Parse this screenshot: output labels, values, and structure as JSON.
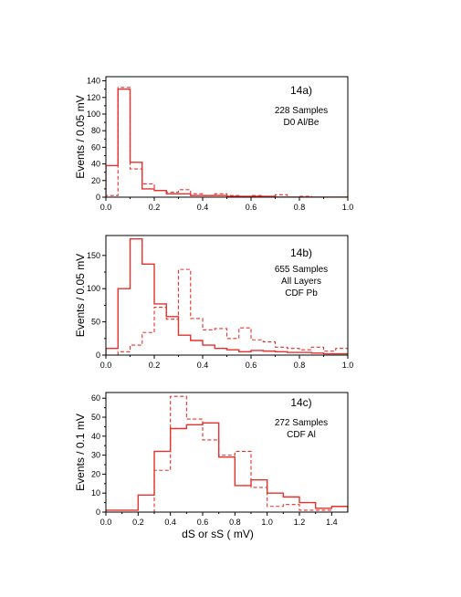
{
  "colors": {
    "solid": "#e8302c",
    "dashed": "#e8302c",
    "axis": "#000000"
  },
  "chart_data": [
    {
      "type": "histogram",
      "label": "14a)",
      "annotation": [
        "228 Samples",
        "D0 Al/Be"
      ],
      "ylabel": "Events / 0.05 mV",
      "xlabel": "",
      "xlim": [
        0,
        1.0
      ],
      "ylim": [
        0,
        145
      ],
      "xticks": [
        0,
        0.2,
        0.4,
        0.6,
        0.8,
        1.0
      ],
      "xtick_labels": [
        "0.0",
        "0.2",
        "0.4",
        "0.6",
        "0.8",
        "1.0"
      ],
      "yticks": [
        0,
        20,
        40,
        60,
        80,
        100,
        120,
        140
      ],
      "ytick_labels": [
        "0",
        "20",
        "40",
        "60",
        "80",
        "100",
        "120",
        "140"
      ],
      "bin_edges": [
        0,
        0.05,
        0.1,
        0.15,
        0.2,
        0.25,
        0.3,
        0.35,
        0.4,
        0.45,
        0.5,
        0.55,
        0.6,
        0.65,
        0.7,
        0.75,
        0.8,
        0.85,
        0.9,
        0.95,
        1.0
      ],
      "series": [
        {
          "style": "solid",
          "values": [
            38,
            130,
            42,
            10,
            8,
            4,
            4,
            2,
            2,
            2,
            1,
            1,
            1,
            1,
            0,
            0,
            0,
            0,
            0,
            0
          ]
        },
        {
          "style": "dashed",
          "values": [
            2,
            132,
            34,
            16,
            8,
            6,
            9,
            4,
            2,
            4,
            2,
            1,
            2,
            1,
            3,
            0,
            1,
            0,
            0,
            0
          ]
        }
      ]
    },
    {
      "type": "histogram",
      "label": "14b)",
      "annotation": [
        "655 Samples",
        "All Layers",
        "CDF Pb"
      ],
      "ylabel": "Events / 0.05 mV",
      "xlabel": "",
      "xlim": [
        0,
        1.0
      ],
      "ylim": [
        0,
        180
      ],
      "xticks": [
        0,
        0.2,
        0.4,
        0.6,
        0.8,
        1.0
      ],
      "xtick_labels": [
        "0.0",
        "0.2",
        "0.4",
        "0.6",
        "0.8",
        "1.0"
      ],
      "yticks": [
        0,
        50,
        100,
        150
      ],
      "ytick_labels": [
        "0",
        "50",
        "100",
        "150"
      ],
      "bin_edges": [
        0,
        0.05,
        0.1,
        0.15,
        0.2,
        0.25,
        0.3,
        0.35,
        0.4,
        0.45,
        0.5,
        0.55,
        0.6,
        0.65,
        0.7,
        0.75,
        0.8,
        0.85,
        0.9,
        0.95,
        1.0
      ],
      "series": [
        {
          "style": "solid",
          "values": [
            10,
            100,
            175,
            137,
            77,
            58,
            30,
            22,
            15,
            10,
            8,
            5,
            7,
            6,
            5,
            4,
            4,
            3,
            2,
            2
          ]
        },
        {
          "style": "dashed",
          "values": [
            0,
            5,
            15,
            34,
            72,
            54,
            129,
            55,
            38,
            40,
            25,
            41,
            23,
            20,
            12,
            10,
            8,
            12,
            6,
            10
          ]
        }
      ]
    },
    {
      "type": "histogram",
      "label": "14c)",
      "annotation": [
        "272 Samples",
        "CDF Al"
      ],
      "ylabel": "Events / 0.1 mV",
      "xlabel": "dS  or  sS ( mV)",
      "xlim": [
        0,
        1.5
      ],
      "ylim": [
        0,
        63
      ],
      "xticks": [
        0,
        0.2,
        0.4,
        0.6,
        0.8,
        1.0,
        1.2,
        1.4
      ],
      "xtick_labels": [
        "0.0",
        "0.2",
        "0.4",
        "0.6",
        "0.8",
        "1.0",
        "1.2",
        "1.4"
      ],
      "yticks": [
        0,
        10,
        20,
        30,
        40,
        50,
        60
      ],
      "ytick_labels": [
        "0",
        "10",
        "20",
        "30",
        "40",
        "50",
        "60"
      ],
      "bin_edges": [
        0,
        0.1,
        0.2,
        0.3,
        0.4,
        0.5,
        0.6,
        0.7,
        0.8,
        0.9,
        1.0,
        1.1,
        1.2,
        1.3,
        1.4,
        1.5
      ],
      "series": [
        {
          "style": "solid",
          "values": [
            1,
            1,
            9,
            32,
            44,
            46,
            47,
            29,
            14,
            17,
            10,
            8,
            5,
            2,
            3
          ]
        },
        {
          "style": "dashed",
          "values": [
            0,
            0,
            0,
            22,
            61,
            49,
            38,
            30,
            32,
            13,
            3,
            4,
            1,
            1,
            0
          ]
        }
      ]
    }
  ]
}
